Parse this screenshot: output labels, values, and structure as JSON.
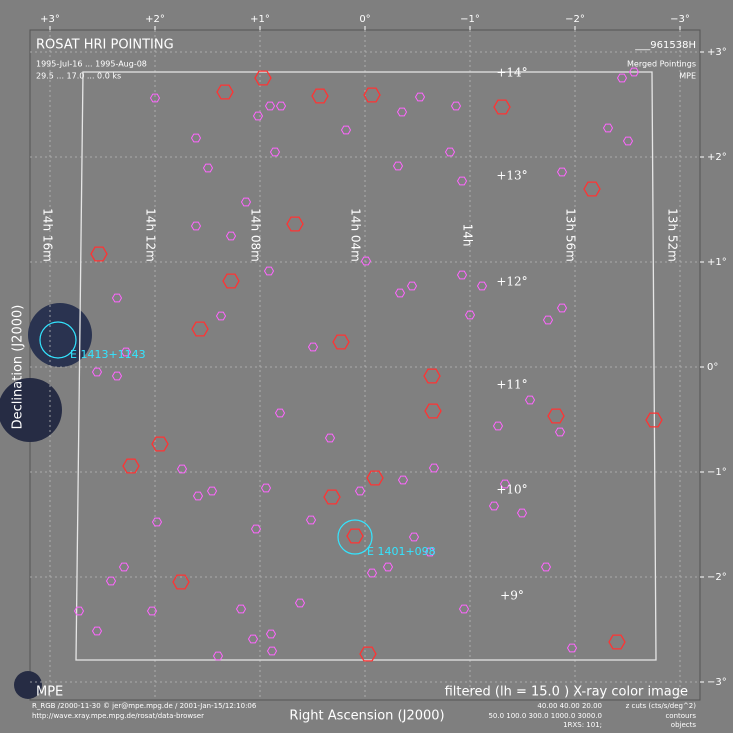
{
  "header": {
    "title": "ROSAT HRI POINTING",
    "dates": "1995-Jul-16 ... 1995-Aug-08",
    "exposure": "29.5 ... 17.0 ... 0.0 ks",
    "id": "___961538H",
    "subtitle": "Merged Pointings",
    "org": "MPE"
  },
  "axes": {
    "top": [
      "+3°",
      "+2°",
      "+1°",
      "0°",
      "−1°",
      "−2°",
      "−3°"
    ],
    "right": [
      "+3°",
      "+2°",
      "+1°",
      "0°",
      "−1°",
      "−2°",
      "−3°"
    ],
    "x_label": "Right Ascension (J2000)",
    "y_label": "Declination (J2000)"
  },
  "dec_labels": [
    "+14°",
    "+13°",
    "+12°",
    "+11°",
    "+10°",
    "+9°"
  ],
  "ra_labels": [
    "14h 16m",
    "14h 12m",
    "14h 08m",
    "14h 04m",
    "14h",
    "13h 56m",
    "13h 52m"
  ],
  "sources": [
    "E 1413+1143",
    "E 1401+098"
  ],
  "footer": {
    "org": "MPE",
    "mode": "filtered (lh =  15.0 ) X-ray color image",
    "credit": "R_RGB /2000-11-30 © jer@mpe.mpg.de / 2001-Jan-15/12:10:06",
    "url": "http://wave.xray.mpe.mpg.de/rosat/data-browser",
    "cuts": "40.00   40.00   20.00",
    "cuts_label": "z cuts (cts/s/deg^2)",
    "contours": "50.0  100.0  300.0  1000.0  3000.0",
    "contours_label": "contours",
    "objects": "1RXS: 101;",
    "objects_label": "objects"
  }
}
